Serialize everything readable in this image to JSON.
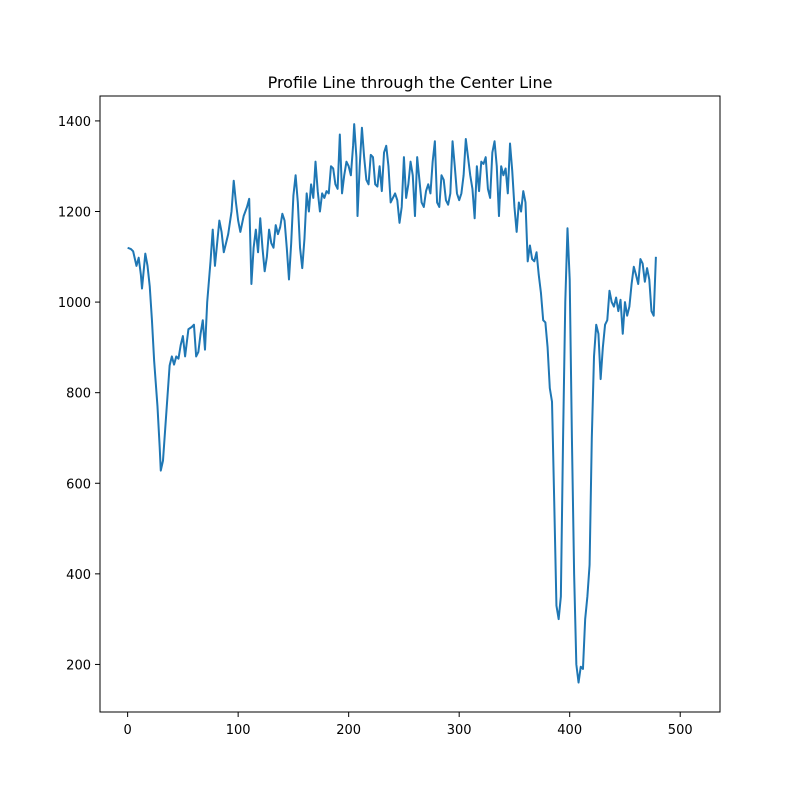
{
  "chart_data": {
    "type": "line",
    "title": "Profile Line through the Center Line",
    "xlabel": "",
    "ylabel": "",
    "xlim": [
      -25,
      536
    ],
    "ylim": [
      95,
      1455
    ],
    "xticks": [
      0,
      100,
      200,
      300,
      400,
      500
    ],
    "yticks": [
      200,
      400,
      600,
      800,
      1000,
      1200,
      1400
    ],
    "grid": false,
    "line_color": "#1f77b4",
    "series": [
      {
        "values": [
          [
            0,
            1120
          ],
          [
            3,
            1117
          ],
          [
            5,
            1112
          ],
          [
            8,
            1080
          ],
          [
            10,
            1098
          ],
          [
            12,
            1060
          ],
          [
            13,
            1030
          ],
          [
            16,
            1107
          ],
          [
            18,
            1080
          ],
          [
            20,
            1035
          ],
          [
            22,
            960
          ],
          [
            24,
            870
          ],
          [
            27,
            770
          ],
          [
            29,
            680
          ],
          [
            30,
            628
          ],
          [
            32,
            650
          ],
          [
            34,
            720
          ],
          [
            36,
            790
          ],
          [
            38,
            860
          ],
          [
            40,
            880
          ],
          [
            42,
            862
          ],
          [
            44,
            880
          ],
          [
            46,
            875
          ],
          [
            48,
            905
          ],
          [
            50,
            925
          ],
          [
            52,
            880
          ],
          [
            55,
            940
          ],
          [
            58,
            945
          ],
          [
            60,
            950
          ],
          [
            62,
            880
          ],
          [
            64,
            890
          ],
          [
            66,
            930
          ],
          [
            68,
            960
          ],
          [
            70,
            895
          ],
          [
            72,
            1000
          ],
          [
            75,
            1090
          ],
          [
            77,
            1160
          ],
          [
            79,
            1080
          ],
          [
            81,
            1130
          ],
          [
            83,
            1180
          ],
          [
            85,
            1155
          ],
          [
            87,
            1110
          ],
          [
            89,
            1130
          ],
          [
            91,
            1150
          ],
          [
            94,
            1200
          ],
          [
            96,
            1268
          ],
          [
            98,
            1220
          ],
          [
            100,
            1180
          ],
          [
            102,
            1155
          ],
          [
            105,
            1190
          ],
          [
            108,
            1210
          ],
          [
            110,
            1228
          ],
          [
            112,
            1040
          ],
          [
            114,
            1120
          ],
          [
            116,
            1160
          ],
          [
            118,
            1110
          ],
          [
            120,
            1185
          ],
          [
            122,
            1120
          ],
          [
            124,
            1068
          ],
          [
            126,
            1100
          ],
          [
            128,
            1160
          ],
          [
            130,
            1130
          ],
          [
            132,
            1120
          ],
          [
            134,
            1170
          ],
          [
            136,
            1150
          ],
          [
            138,
            1165
          ],
          [
            140,
            1195
          ],
          [
            142,
            1180
          ],
          [
            144,
            1120
          ],
          [
            146,
            1050
          ],
          [
            148,
            1130
          ],
          [
            150,
            1235
          ],
          [
            152,
            1280
          ],
          [
            154,
            1220
          ],
          [
            156,
            1120
          ],
          [
            158,
            1075
          ],
          [
            160,
            1140
          ],
          [
            162,
            1240
          ],
          [
            164,
            1200
          ],
          [
            166,
            1260
          ],
          [
            168,
            1230
          ],
          [
            170,
            1310
          ],
          [
            172,
            1245
          ],
          [
            174,
            1200
          ],
          [
            176,
            1240
          ],
          [
            178,
            1230
          ],
          [
            180,
            1245
          ],
          [
            182,
            1240
          ],
          [
            184,
            1300
          ],
          [
            186,
            1295
          ],
          [
            188,
            1260
          ],
          [
            190,
            1250
          ],
          [
            192,
            1370
          ],
          [
            194,
            1240
          ],
          [
            196,
            1280
          ],
          [
            198,
            1310
          ],
          [
            200,
            1300
          ],
          [
            202,
            1280
          ],
          [
            204,
            1345
          ],
          [
            205,
            1393
          ],
          [
            207,
            1320
          ],
          [
            208,
            1190
          ],
          [
            210,
            1300
          ],
          [
            212,
            1385
          ],
          [
            214,
            1320
          ],
          [
            216,
            1270
          ],
          [
            218,
            1260
          ],
          [
            220,
            1325
          ],
          [
            222,
            1320
          ],
          [
            224,
            1260
          ],
          [
            226,
            1255
          ],
          [
            228,
            1300
          ],
          [
            230,
            1245
          ],
          [
            232,
            1330
          ],
          [
            234,
            1345
          ],
          [
            236,
            1300
          ],
          [
            238,
            1220
          ],
          [
            240,
            1230
          ],
          [
            242,
            1240
          ],
          [
            244,
            1225
          ],
          [
            246,
            1175
          ],
          [
            248,
            1210
          ],
          [
            250,
            1320
          ],
          [
            252,
            1230
          ],
          [
            254,
            1260
          ],
          [
            256,
            1310
          ],
          [
            258,
            1280
          ],
          [
            260,
            1190
          ],
          [
            262,
            1320
          ],
          [
            264,
            1270
          ],
          [
            266,
            1220
          ],
          [
            268,
            1210
          ],
          [
            270,
            1245
          ],
          [
            272,
            1260
          ],
          [
            274,
            1240
          ],
          [
            276,
            1310
          ],
          [
            278,
            1355
          ],
          [
            280,
            1220
          ],
          [
            282,
            1210
          ],
          [
            284,
            1280
          ],
          [
            286,
            1270
          ],
          [
            288,
            1225
          ],
          [
            290,
            1215
          ],
          [
            292,
            1240
          ],
          [
            294,
            1355
          ],
          [
            296,
            1300
          ],
          [
            298,
            1240
          ],
          [
            300,
            1225
          ],
          [
            302,
            1240
          ],
          [
            304,
            1280
          ],
          [
            306,
            1360
          ],
          [
            308,
            1320
          ],
          [
            310,
            1280
          ],
          [
            312,
            1250
          ],
          [
            314,
            1185
          ],
          [
            316,
            1300
          ],
          [
            318,
            1245
          ],
          [
            320,
            1310
          ],
          [
            322,
            1305
          ],
          [
            324,
            1320
          ],
          [
            326,
            1250
          ],
          [
            328,
            1230
          ],
          [
            330,
            1330
          ],
          [
            332,
            1355
          ],
          [
            334,
            1300
          ],
          [
            336,
            1190
          ],
          [
            338,
            1300
          ],
          [
            340,
            1280
          ],
          [
            342,
            1295
          ],
          [
            344,
            1240
          ],
          [
            346,
            1350
          ],
          [
            348,
            1290
          ],
          [
            350,
            1210
          ],
          [
            352,
            1155
          ],
          [
            354,
            1220
          ],
          [
            356,
            1200
          ],
          [
            358,
            1245
          ],
          [
            360,
            1220
          ],
          [
            362,
            1090
          ],
          [
            364,
            1125
          ],
          [
            366,
            1095
          ],
          [
            368,
            1090
          ],
          [
            370,
            1110
          ],
          [
            372,
            1060
          ],
          [
            374,
            1020
          ],
          [
            376,
            960
          ],
          [
            378,
            955
          ],
          [
            380,
            900
          ],
          [
            382,
            810
          ],
          [
            384,
            780
          ],
          [
            386,
            560
          ],
          [
            388,
            330
          ],
          [
            390,
            300
          ],
          [
            392,
            350
          ],
          [
            394,
            700
          ],
          [
            396,
            1000
          ],
          [
            398,
            1163
          ],
          [
            400,
            1050
          ],
          [
            402,
            700
          ],
          [
            404,
            400
          ],
          [
            406,
            200
          ],
          [
            408,
            160
          ],
          [
            410,
            195
          ],
          [
            412,
            190
          ],
          [
            414,
            300
          ],
          [
            416,
            350
          ],
          [
            418,
            420
          ],
          [
            420,
            700
          ],
          [
            422,
            880
          ],
          [
            424,
            950
          ],
          [
            426,
            930
          ],
          [
            428,
            830
          ],
          [
            430,
            900
          ],
          [
            432,
            950
          ],
          [
            434,
            960
          ],
          [
            436,
            1025
          ],
          [
            438,
            1000
          ],
          [
            440,
            990
          ],
          [
            442,
            1010
          ],
          [
            444,
            980
          ],
          [
            446,
            1005
          ],
          [
            448,
            930
          ],
          [
            450,
            1000
          ],
          [
            452,
            970
          ],
          [
            454,
            990
          ],
          [
            456,
            1040
          ],
          [
            458,
            1078
          ],
          [
            460,
            1060
          ],
          [
            462,
            1040
          ],
          [
            464,
            1095
          ],
          [
            466,
            1085
          ],
          [
            468,
            1045
          ],
          [
            470,
            1075
          ],
          [
            472,
            1050
          ],
          [
            474,
            980
          ],
          [
            476,
            970
          ],
          [
            478,
            1100
          ]
        ]
      }
    ]
  }
}
